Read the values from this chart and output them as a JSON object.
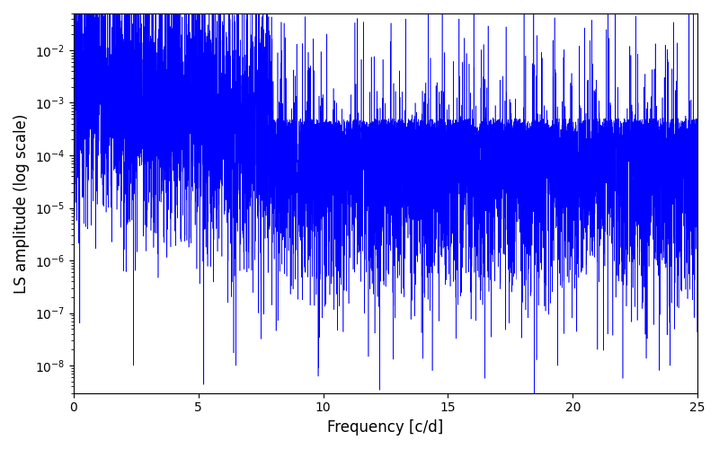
{
  "xlabel": "Frequency [c/d]",
  "ylabel": "LS amplitude (log scale)",
  "xlim": [
    0,
    25
  ],
  "ylim": [
    3e-09,
    0.05
  ],
  "line_color": "blue",
  "linewidth": 0.4,
  "figsize": [
    8.0,
    5.0
  ],
  "dpi": 100,
  "background_color": "#ffffff"
}
